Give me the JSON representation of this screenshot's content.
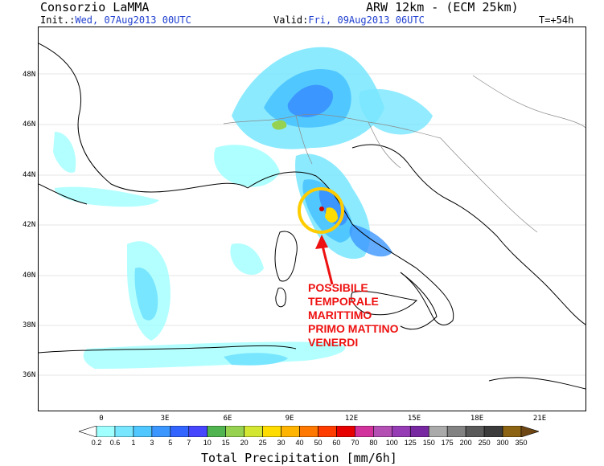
{
  "header": {
    "title": "Consorzio LaMMA",
    "model": "ARW 12km - (ECM 25km)",
    "init_label": "Init.:",
    "init_value": "Wed, 07Aug2013 00UTC",
    "valid_label": "Valid:",
    "valid_value": "Fri, 09Aug2013 06UTC",
    "lead": "T=+54h"
  },
  "map": {
    "lat_labels": [
      "48N",
      "46N",
      "44N",
      "42N",
      "40N",
      "38N",
      "36N"
    ],
    "lon_labels": [
      "0",
      "3E",
      "6E",
      "9E",
      "12E",
      "15E",
      "18E",
      "21E"
    ]
  },
  "annotation": {
    "lines": [
      "POSSIBILE",
      "TEMPORALE",
      "MARITTIMO",
      "PRIMO MATTINO",
      "VENERDI"
    ],
    "color": "#ee1111"
  },
  "legend": {
    "title": "Total Precipitation [mm/6h]",
    "levels": [
      "0.2",
      "0.6",
      "1",
      "3",
      "5",
      "7",
      "10",
      "15",
      "20",
      "25",
      "30",
      "40",
      "50",
      "60",
      "70",
      "80",
      "100",
      "125",
      "150",
      "175",
      "200",
      "250",
      "300",
      "350"
    ],
    "colors": [
      "#a0ffff",
      "#78e6ff",
      "#50c8ff",
      "#3c96ff",
      "#3264ff",
      "#4646ff",
      "#50b450",
      "#96d250",
      "#d2e632",
      "#ffdc00",
      "#ffb400",
      "#ff7800",
      "#ff3c00",
      "#e60000",
      "#d2329b",
      "#b450b4",
      "#963cb4",
      "#7828a0",
      "#aaaaaa",
      "#828282",
      "#5a5a5a",
      "#3c3c3c",
      "#8c6414",
      "#6e4614"
    ]
  }
}
